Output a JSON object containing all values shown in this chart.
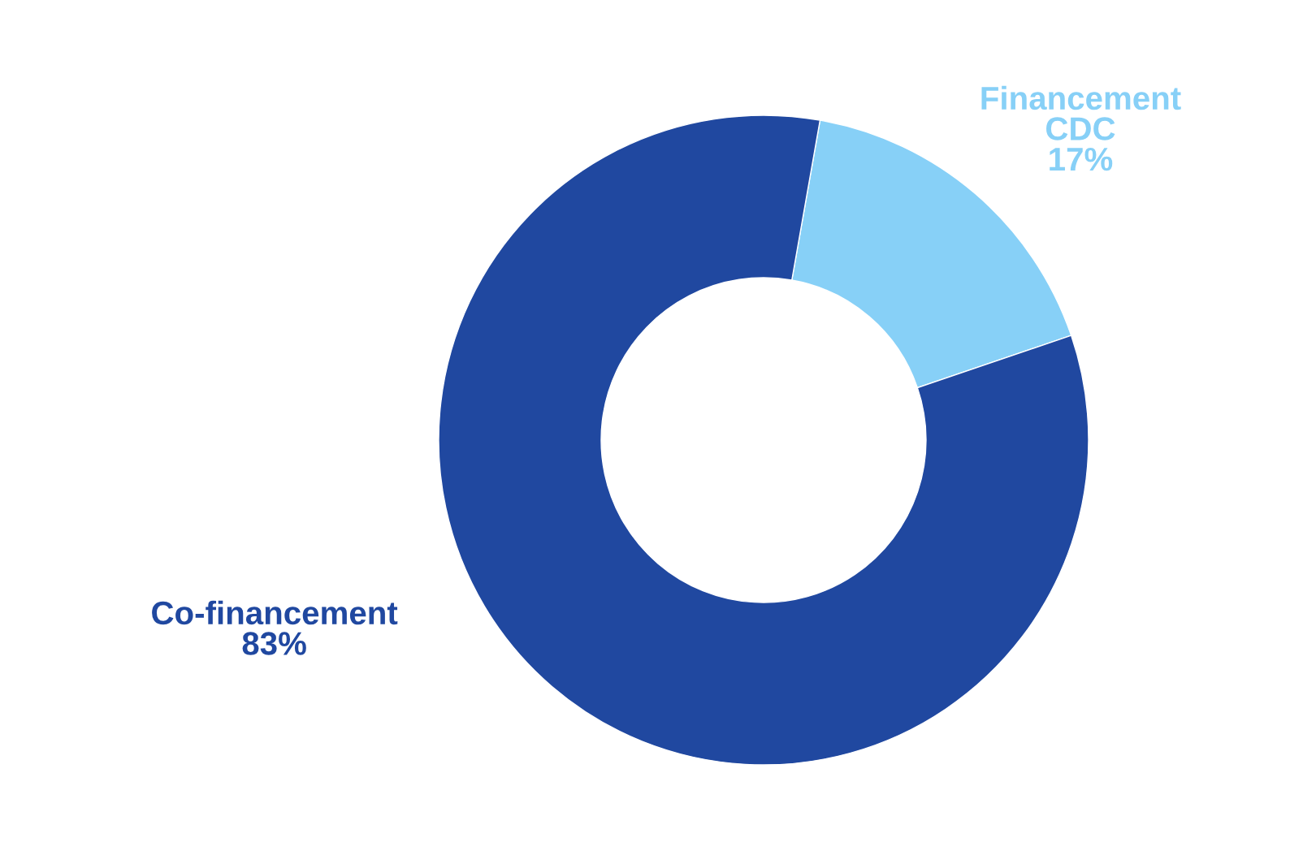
{
  "chart_data": {
    "type": "donut",
    "categories": [
      "Financement\nCDC",
      "Co-financement"
    ],
    "values": [
      17,
      83
    ],
    "colors": [
      "#87d0f7",
      "#2048a0"
    ],
    "value_labels": [
      "17%",
      "83%"
    ]
  }
}
